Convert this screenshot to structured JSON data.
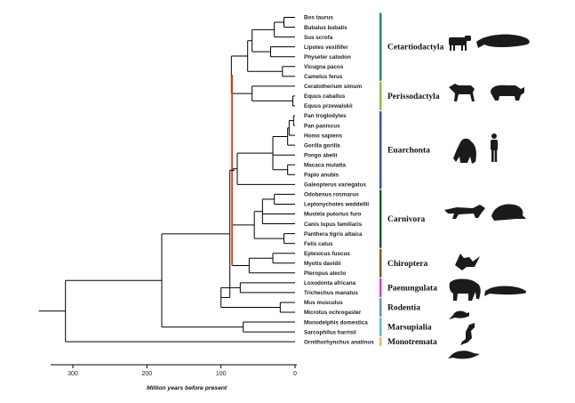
{
  "taxa": [
    "Bos taurus",
    "Bubalus bubalis",
    "Sus scrofa",
    "Lipotes vexillifer",
    "Physeter catodon",
    "Vicugna pacos",
    "Camelus ferus",
    "Ceratotherium simum",
    "Equus caballus",
    "Equus przewalskii",
    "Pan troglodytes",
    "Pan paniscus",
    "Homo sapiens",
    "Gorilla gorilla",
    "Pongo abelii",
    "Macaca mulatta",
    "Papio anubis",
    "Galeopterus variegatus",
    "Odobenus rosmarus",
    "Leptonychotes weddellii",
    "Mustela putorius furo",
    "Canis lupus familiaris",
    "Panthera tigris altaica",
    "Felis catus",
    "Eptesicus fuscus",
    "Myotis davidii",
    "Pteropus alecto",
    "Loxodonta africana",
    "Trichechus manatus",
    "Mus musculus",
    "Microtus ochrogaster",
    "Monodelphis domestica",
    "Sarcophilus harrisii",
    "Ornithorhynchus anatinus"
  ],
  "groups": [
    {
      "name": "Cetartiodactyla",
      "color": "#1f8a5b",
      "from": 0,
      "to": 6
    },
    {
      "name": "Perissodactyla",
      "color": "#7cc242",
      "from": 7,
      "to": 9
    },
    {
      "name": "Euarchonta",
      "color": "#3b4aa8",
      "from": 10,
      "to": 17
    },
    {
      "name": "Carnivora",
      "color": "#17542a",
      "from": 18,
      "to": 23
    },
    {
      "name": "Chiroptera",
      "color": "#7a5a1e",
      "from": 24,
      "to": 26
    },
    {
      "name": "Paenungulata",
      "color": "#d23fc4",
      "from": 27,
      "to": 28
    },
    {
      "name": "Rodentia",
      "color": "#5b8ec9",
      "from": 29,
      "to": 30
    },
    {
      "name": "Marsupialia",
      "color": "#4fc1c9",
      "from": 31,
      "to": 32
    },
    {
      "name": "Monotremata",
      "color": "#f3b06b",
      "from": 33,
      "to": 33
    }
  ],
  "axis": {
    "title": "Million years before present",
    "ticks": [
      300,
      200,
      100,
      0
    ]
  },
  "highlight_color": "#e0452a"
}
